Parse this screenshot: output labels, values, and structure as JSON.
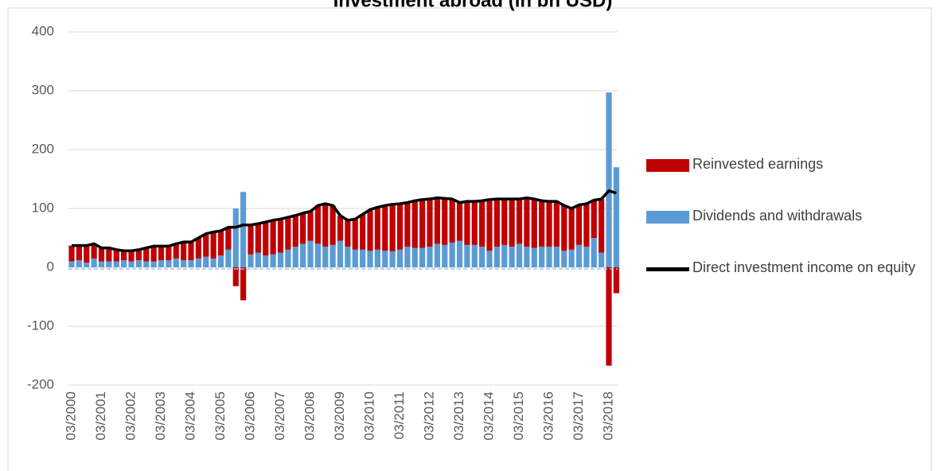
{
  "chart_data": {
    "type": "bar",
    "title": "Investment abroad (in bn USD)",
    "categories": [
      "03/2000",
      null,
      null,
      null,
      "03/2001",
      null,
      null,
      null,
      "03/2002",
      null,
      null,
      null,
      "03/2003",
      null,
      null,
      null,
      "03/2004",
      null,
      null,
      null,
      "03/2005",
      null,
      null,
      null,
      "03/2006",
      null,
      null,
      null,
      "03/2007",
      null,
      null,
      null,
      "03/2008",
      null,
      null,
      null,
      "03/2009",
      null,
      null,
      null,
      "03/2010",
      null,
      null,
      null,
      "03/2011",
      null,
      null,
      null,
      "03/2012",
      null,
      null,
      null,
      "03/2013",
      null,
      null,
      null,
      "03/2014",
      null,
      null,
      null,
      "03/2015",
      null,
      null,
      null,
      "03/2016",
      null,
      null,
      null,
      "03/2017",
      null,
      null,
      null,
      "03/2018",
      null
    ],
    "series": [
      {
        "name": "Dividends and withdrawals",
        "color": "#5b9bd5",
        "values": [
          10,
          12,
          8,
          15,
          10,
          10,
          10,
          12,
          10,
          12,
          10,
          10,
          12,
          12,
          15,
          12,
          12,
          15,
          18,
          15,
          20,
          30,
          100,
          128,
          22,
          25,
          20,
          22,
          25,
          30,
          35,
          40,
          45,
          40,
          35,
          38,
          45,
          35,
          30,
          30,
          28,
          30,
          28,
          27,
          30,
          35,
          33,
          33,
          35,
          40,
          38,
          42,
          45,
          38,
          38,
          35,
          28,
          35,
          38,
          35,
          40,
          35,
          33,
          35,
          35,
          35,
          28,
          30,
          38,
          35,
          50,
          25,
          297,
          170
        ]
      },
      {
        "name": "Reinvested earnings",
        "color": "#c00000",
        "values": [
          27,
          25,
          29,
          25,
          23,
          23,
          20,
          16,
          18,
          18,
          23,
          26,
          24,
          24,
          25,
          31,
          31,
          35,
          39,
          45,
          42,
          38,
          -32,
          -56,
          50,
          49,
          57,
          58,
          57,
          55,
          53,
          52,
          50,
          65,
          73,
          67,
          43,
          45,
          52,
          60,
          70,
          72,
          77,
          80,
          78,
          75,
          80,
          82,
          81,
          78,
          79,
          74,
          65,
          74,
          74,
          78,
          87,
          81,
          78,
          81,
          76,
          83,
          83,
          78,
          77,
          77,
          77,
          70,
          68,
          73,
          64,
          91,
          -167,
          -44
        ]
      },
      {
        "name": "Direct investment income on equity",
        "color": "#000000",
        "type": "line",
        "values": [
          37,
          37,
          37,
          40,
          33,
          33,
          30,
          28,
          28,
          30,
          33,
          36,
          36,
          36,
          40,
          43,
          43,
          50,
          57,
          60,
          62,
          68,
          68,
          72,
          72,
          74,
          77,
          80,
          82,
          85,
          88,
          92,
          95,
          105,
          108,
          105,
          88,
          80,
          82,
          90,
          98,
          102,
          105,
          107,
          108,
          110,
          113,
          115,
          116,
          118,
          117,
          116,
          110,
          112,
          112,
          113,
          115,
          116,
          116,
          116,
          116,
          118,
          116,
          113,
          112,
          112,
          105,
          100,
          106,
          108,
          114,
          116,
          130,
          126
        ]
      }
    ],
    "legend_order": [
      1,
      0,
      2
    ],
    "ylim": [
      -200,
      400
    ],
    "yticks": [
      -200,
      -100,
      0,
      100,
      200,
      300,
      400
    ],
    "grid": true
  }
}
